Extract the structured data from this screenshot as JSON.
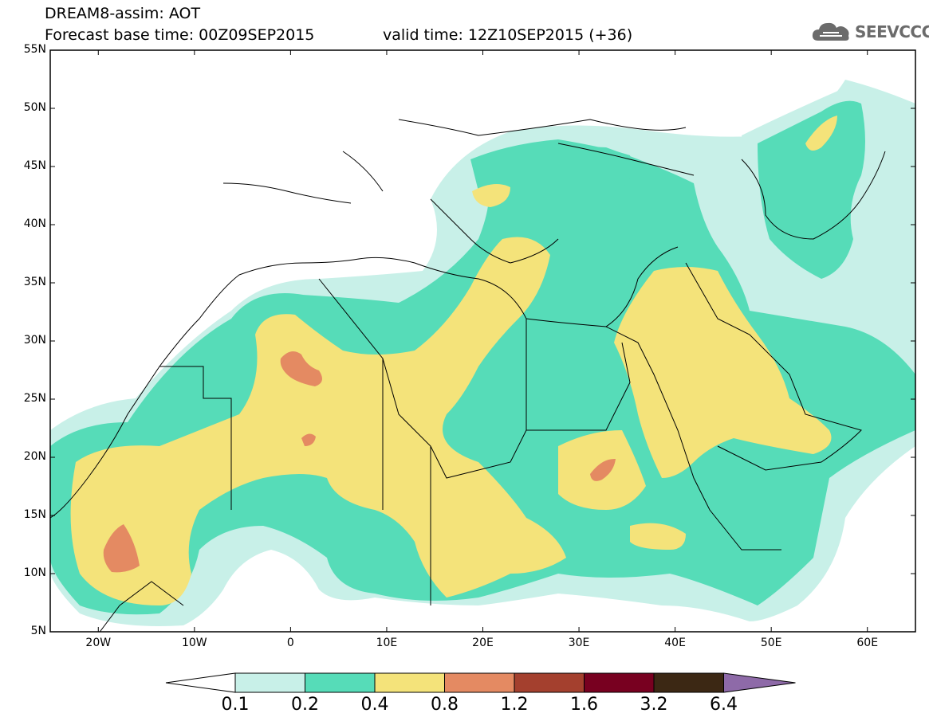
{
  "header": {
    "title": "DREAM8-assim: AOT",
    "base_time": "Forecast base time: 00Z09SEP2015",
    "valid_time": "valid time: 12Z10SEP2015 (+36)",
    "logo_text": "SEEVCCC",
    "logo_icon": "cloud-icon"
  },
  "map": {
    "projection": "lat-lon",
    "lon_range": [
      -25,
      65
    ],
    "lat_range": [
      5,
      55
    ],
    "lat_labels": [
      "55N",
      "50N",
      "45N",
      "40N",
      "35N",
      "30N",
      "25N",
      "20N",
      "15N",
      "10N",
      "5N"
    ],
    "lon_labels": [
      "20W",
      "10W",
      "0",
      "10E",
      "20E",
      "30E",
      "40E",
      "50E",
      "60E"
    ]
  },
  "colorbar": {
    "labels": [
      "0.1",
      "0.2",
      "0.4",
      "0.8",
      "1.2",
      "1.6",
      "3.2",
      "6.4"
    ],
    "colors": [
      "#ffffff",
      "#c8f0e8",
      "#56dcb8",
      "#f4e37a",
      "#e48a62",
      "#a4402e",
      "#780020",
      "#3c2814",
      "#8e6aa8"
    ]
  }
}
